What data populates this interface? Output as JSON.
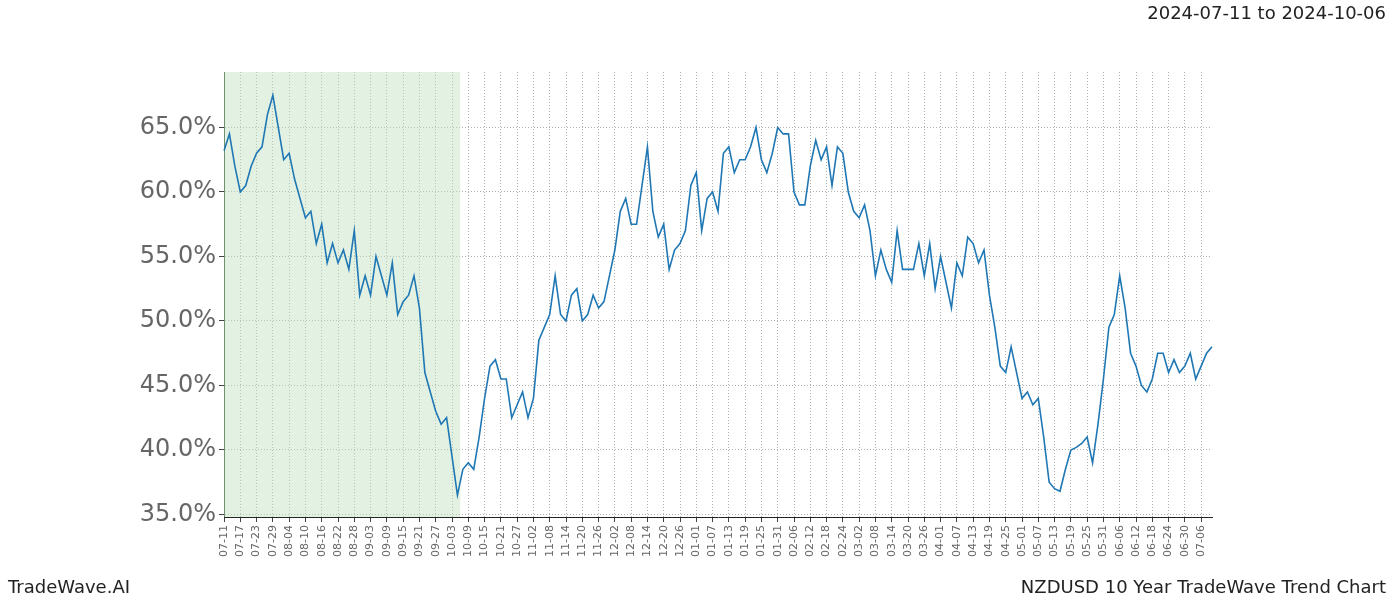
{
  "chart_data": {
    "type": "line",
    "title": "NZDUSD 10 Year TradeWave Trend Chart",
    "subtitle": "2024-07-11 to 2024-10-06",
    "annotations": [
      "TradeWave.AI"
    ],
    "shaded_range": {
      "start": "2024-07-11",
      "end": "2024-10-06"
    },
    "color": "#1f77b4",
    "grid": true,
    "ylim": [
      34.8,
      69.3
    ],
    "yticks": [
      {
        "value": 35,
        "label": "35.0%"
      },
      {
        "value": 40,
        "label": "40.0%"
      },
      {
        "value": 45,
        "label": "45.0%"
      },
      {
        "value": 50,
        "label": "50.0%"
      },
      {
        "value": 55,
        "label": "55.0%"
      },
      {
        "value": 60,
        "label": "60.0%"
      },
      {
        "value": 65,
        "label": "65.0%"
      }
    ],
    "categories": [
      "07-11",
      null,
      null,
      "07-17",
      null,
      null,
      "07-23",
      null,
      null,
      "07-29",
      null,
      null,
      "08-04",
      null,
      null,
      "08-10",
      null,
      null,
      "08-16",
      null,
      null,
      "08-22",
      null,
      null,
      "08-28",
      null,
      null,
      "09-03",
      null,
      null,
      "09-09",
      null,
      null,
      "09-15",
      null,
      null,
      "09-21",
      null,
      null,
      "09-27",
      null,
      null,
      "10-03",
      null,
      null,
      "10-09",
      null,
      null,
      "10-15",
      null,
      null,
      "10-21",
      null,
      null,
      "10-27",
      null,
      null,
      "11-02",
      null,
      null,
      "11-08",
      null,
      null,
      "11-14",
      null,
      null,
      "11-20",
      null,
      null,
      "11-26",
      null,
      null,
      "12-02",
      null,
      null,
      "12-08",
      null,
      null,
      "12-14",
      null,
      null,
      "12-20",
      null,
      null,
      "12-26",
      null,
      null,
      "01-01",
      null,
      null,
      "01-07",
      null,
      null,
      "01-13",
      null,
      null,
      "01-19",
      null,
      null,
      "01-25",
      null,
      null,
      "01-31",
      null,
      null,
      "02-06",
      null,
      null,
      "02-12",
      null,
      null,
      "02-18",
      null,
      null,
      "02-24",
      null,
      null,
      "03-02",
      null,
      null,
      "03-08",
      null,
      null,
      "03-14",
      null,
      null,
      "03-20",
      null,
      null,
      "03-26",
      null,
      null,
      "04-01",
      null,
      null,
      "04-07",
      null,
      null,
      "04-13",
      null,
      null,
      "04-19",
      null,
      null,
      "04-25",
      null,
      null,
      "05-01",
      null,
      null,
      "05-07",
      null,
      null,
      "05-13",
      null,
      null,
      "05-19",
      null,
      null,
      "05-25",
      null,
      null,
      "05-31",
      null,
      null,
      "06-06",
      null,
      null,
      "06-12",
      null,
      null,
      "06-18",
      null,
      null,
      "06-24",
      null,
      null,
      "06-30",
      null,
      null,
      "07-06",
      null,
      null
    ],
    "values": [
      63.2,
      64.5,
      62.0,
      60.0,
      60.5,
      62.0,
      63.0,
      63.5,
      66.0,
      67.5,
      65.0,
      62.5,
      63.0,
      61.0,
      59.5,
      58.0,
      58.5,
      56.0,
      57.5,
      54.5,
      56.0,
      54.5,
      55.5,
      54.0,
      57.0,
      52.0,
      53.5,
      52.0,
      55.0,
      53.5,
      52.0,
      54.5,
      50.5,
      51.5,
      52.0,
      53.5,
      51.0,
      46.0,
      44.5,
      43.0,
      42.0,
      42.5,
      39.5,
      36.5,
      38.5,
      39.0,
      38.5,
      41.0,
      44.0,
      46.5,
      47.0,
      45.5,
      45.5,
      42.5,
      43.5,
      44.5,
      42.5,
      44.0,
      48.5,
      49.5,
      50.5,
      53.5,
      50.5,
      50.0,
      52.0,
      52.5,
      50.0,
      50.5,
      52.0,
      51.0,
      51.5,
      53.5,
      55.5,
      58.5,
      59.5,
      57.5,
      57.5,
      60.5,
      63.5,
      58.5,
      56.5,
      57.5,
      54.0,
      55.5,
      56.0,
      57.0,
      60.5,
      61.5,
      57.0,
      59.5,
      60.0,
      58.5,
      63.0,
      63.5,
      61.5,
      62.5,
      62.5,
      63.5,
      65.0,
      62.5,
      61.5,
      63.0,
      65.0,
      64.5,
      64.5,
      60.0,
      59.0,
      59.0,
      62.0,
      64.0,
      62.5,
      63.5,
      60.5,
      63.5,
      63.0,
      60.0,
      58.5,
      58.0,
      59.0,
      57.0,
      53.5,
      55.5,
      54.0,
      53.0,
      57.0,
      54.0,
      54.0,
      54.0,
      56.0,
      53.5,
      56.0,
      52.5,
      55.0,
      53.0,
      51.0,
      54.5,
      53.5,
      56.5,
      56.0,
      54.5,
      55.5,
      52.0,
      49.5,
      46.5,
      46.0,
      48.0,
      46.0,
      44.0,
      44.5,
      43.5,
      44.0,
      41.0,
      37.5,
      37.0,
      36.8,
      38.5,
      40.0,
      40.2,
      40.5,
      41.0,
      39.0,
      42.0,
      45.5,
      49.5,
      50.5,
      53.5,
      51.0,
      47.5,
      46.5,
      45.0,
      44.5,
      45.5,
      47.5,
      47.5,
      46.0,
      47.0,
      46.0,
      46.5,
      47.5,
      45.5,
      46.5,
      47.5,
      48.0
    ]
  }
}
